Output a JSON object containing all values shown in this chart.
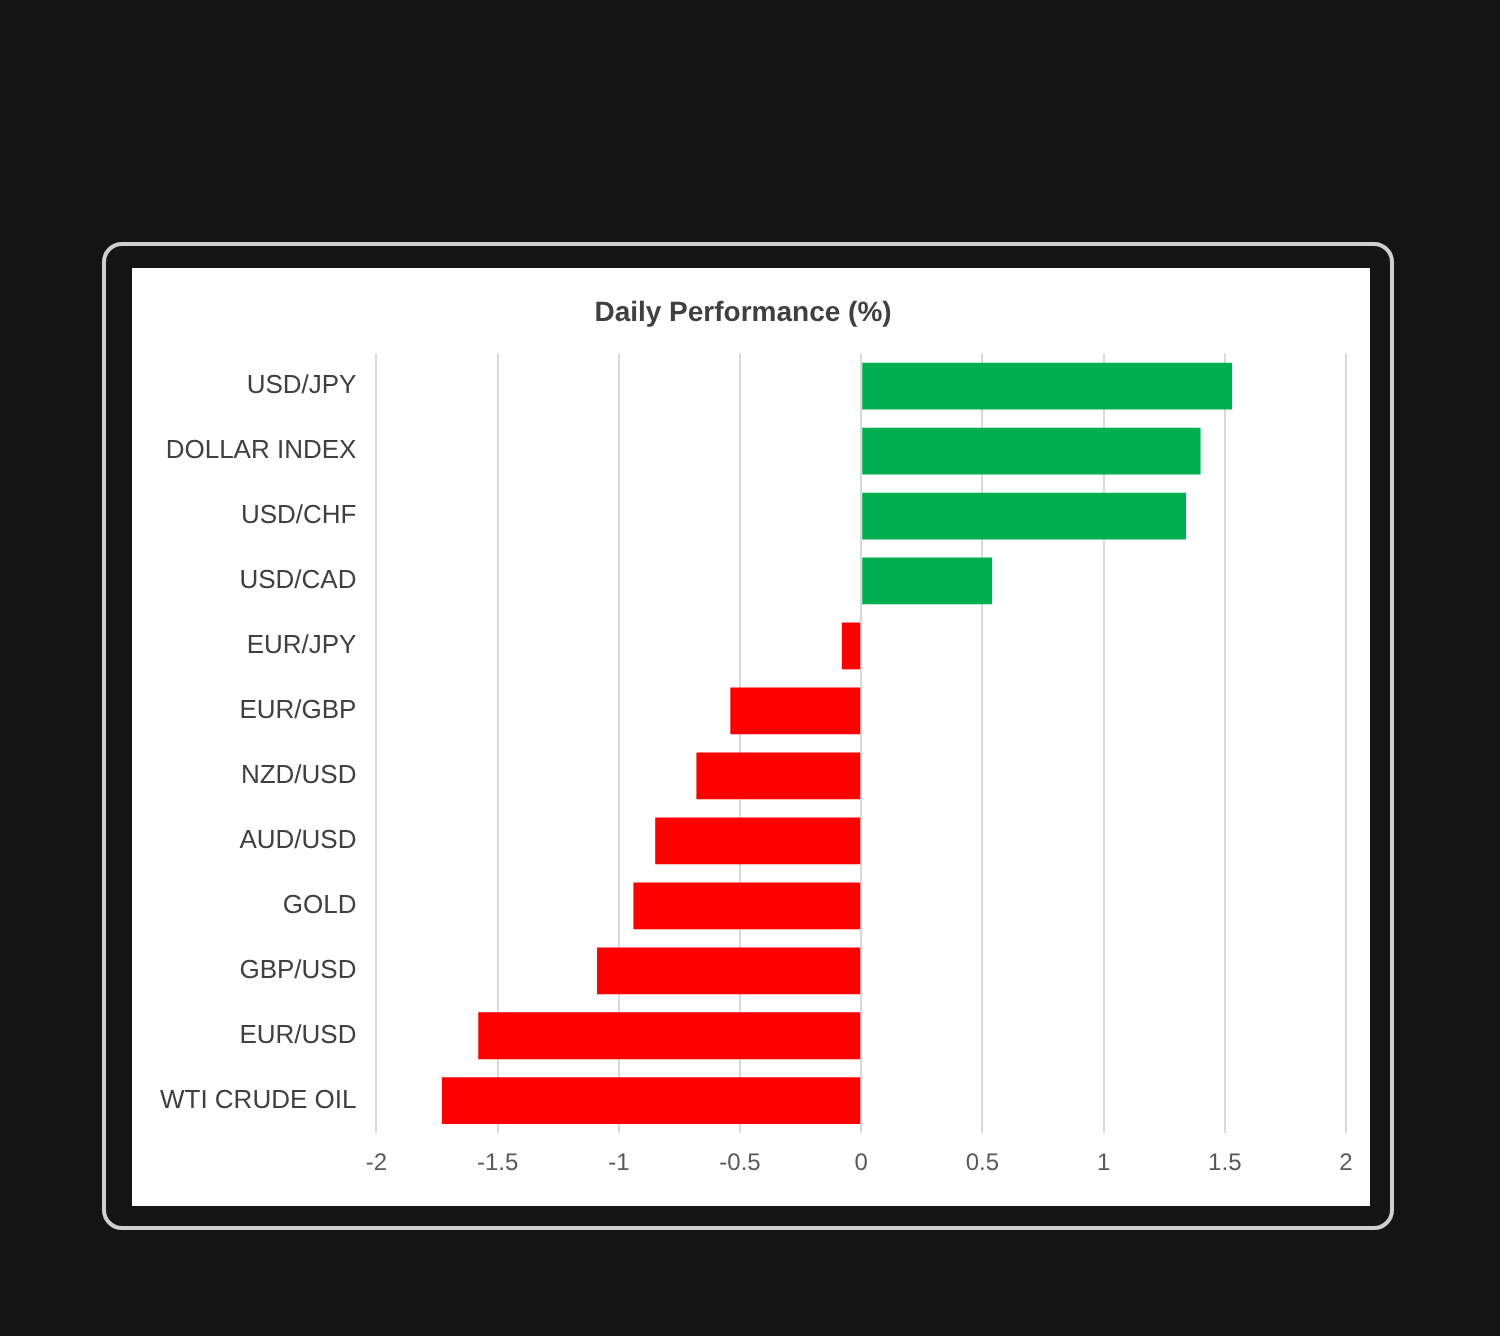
{
  "chart_data": {
    "type": "bar",
    "orientation": "horizontal",
    "title": "Daily Performance (%)",
    "categories": [
      "USD/JPY",
      "DOLLAR INDEX",
      "USD/CHF",
      "USD/CAD",
      "EUR/JPY",
      "EUR/GBP",
      "NZD/USD",
      "AUD/USD",
      "GOLD",
      "GBP/USD",
      "EUR/USD",
      "WTI CRUDE OIL"
    ],
    "values": [
      1.53,
      1.4,
      1.34,
      0.54,
      -0.08,
      -0.54,
      -0.68,
      -0.85,
      -0.94,
      -1.09,
      -1.58,
      -1.73
    ],
    "colors": [
      "#00b050",
      "#00b050",
      "#00b050",
      "#00b050",
      "#ff0000",
      "#ff0000",
      "#ff0000",
      "#ff0000",
      "#ff0000",
      "#ff0000",
      "#ff0000",
      "#ff0000"
    ],
    "xlim": [
      -2,
      2
    ],
    "xticks": [
      -2,
      -1.5,
      -1,
      -0.5,
      0,
      0.5,
      1,
      1.5,
      2
    ],
    "grid": "x",
    "legend": false
  }
}
